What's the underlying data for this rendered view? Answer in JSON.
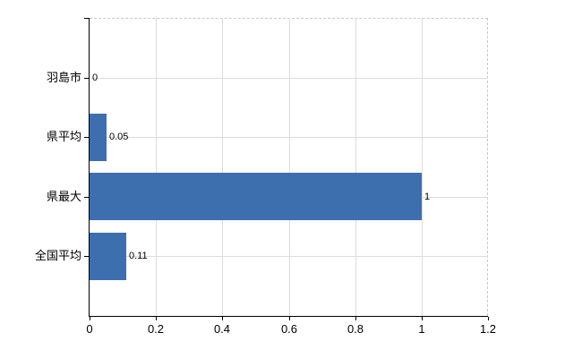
{
  "chart_data": {
    "type": "bar",
    "orientation": "horizontal",
    "title": "",
    "categories": [
      "羽島市",
      "県平均",
      "県最大",
      "全国平均"
    ],
    "values": [
      0,
      0.05,
      1,
      0.11
    ],
    "value_labels": [
      "0",
      "0.05",
      "1",
      "0.11"
    ],
    "x_ticks": [
      0,
      0.2,
      0.4,
      0.6,
      0.8,
      1,
      1.2
    ],
    "x_tick_labels": [
      "0",
      "0.2",
      "0.4",
      "0.6",
      "0.8",
      "1",
      "1.2"
    ],
    "xlim": [
      0,
      1.2
    ],
    "grid": true,
    "legend_position": "none",
    "colors": {
      "bar": "#3d6eae",
      "gridline": "#dcdcdc",
      "border_dashed": "#c8c8c8",
      "axis": "#000000",
      "text": "#000000",
      "background": "#ffffff"
    }
  }
}
